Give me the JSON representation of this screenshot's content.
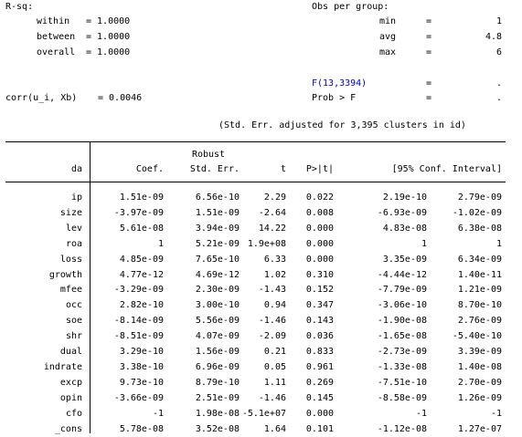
{
  "stats": {
    "rsq_label": "R-sq:",
    "within_label": "within",
    "within_eq": "= 1.0000",
    "between_label": "between",
    "between_eq": "= 1.0000",
    "overall_label": "overall",
    "overall_eq": "= 1.0000",
    "corr_label": "corr(u_i, Xb)",
    "corr_eq": "= 0.0046",
    "obs_label": "Obs per group:",
    "min_label": "min",
    "min_value": "1",
    "avg_label": "avg",
    "avg_value": "4.8",
    "max_label": "max",
    "max_value": "6",
    "f_label": "F(13,3394)",
    "f_value": ".",
    "prob_label": "Prob > F",
    "prob_value": ".",
    "eq_sign": "=",
    "note": "(Std. Err. adjusted for 3,395 clusters in id)"
  },
  "table": {
    "depvar": "da",
    "robust": "Robust",
    "headers": [
      "Coef.",
      "Std. Err.",
      "t",
      "P>|t|",
      "[95% Conf. Interval]"
    ],
    "rows": [
      {
        "var": "ip",
        "coef": "1.51e-09",
        "se": "6.56e-10",
        "t": "2.29",
        "p": "0.022",
        "lo": "2.19e-10",
        "hi": "2.79e-09"
      },
      {
        "var": "size",
        "coef": "-3.97e-09",
        "se": "1.51e-09",
        "t": "-2.64",
        "p": "0.008",
        "lo": "-6.93e-09",
        "hi": "-1.02e-09"
      },
      {
        "var": "lev",
        "coef": "5.61e-08",
        "se": "3.94e-09",
        "t": "14.22",
        "p": "0.000",
        "lo": "4.83e-08",
        "hi": "6.38e-08"
      },
      {
        "var": "roa",
        "coef": "1",
        "se": "5.21e-09",
        "t": "1.9e+08",
        "p": "0.000",
        "lo": "1",
        "hi": "1"
      },
      {
        "var": "loss",
        "coef": "4.85e-09",
        "se": "7.65e-10",
        "t": "6.33",
        "p": "0.000",
        "lo": "3.35e-09",
        "hi": "6.34e-09"
      },
      {
        "var": "growth",
        "coef": "4.77e-12",
        "se": "4.69e-12",
        "t": "1.02",
        "p": "0.310",
        "lo": "-4.44e-12",
        "hi": "1.40e-11"
      },
      {
        "var": "mfee",
        "coef": "-3.29e-09",
        "se": "2.30e-09",
        "t": "-1.43",
        "p": "0.152",
        "lo": "-7.79e-09",
        "hi": "1.21e-09"
      },
      {
        "var": "occ",
        "coef": "2.82e-10",
        "se": "3.00e-10",
        "t": "0.94",
        "p": "0.347",
        "lo": "-3.06e-10",
        "hi": "8.70e-10"
      },
      {
        "var": "soe",
        "coef": "-8.14e-09",
        "se": "5.56e-09",
        "t": "-1.46",
        "p": "0.143",
        "lo": "-1.90e-08",
        "hi": "2.76e-09"
      },
      {
        "var": "shr",
        "coef": "-8.51e-09",
        "se": "4.07e-09",
        "t": "-2.09",
        "p": "0.036",
        "lo": "-1.65e-08",
        "hi": "-5.40e-10"
      },
      {
        "var": "dual",
        "coef": "3.29e-10",
        "se": "1.56e-09",
        "t": "0.21",
        "p": "0.833",
        "lo": "-2.73e-09",
        "hi": "3.39e-09"
      },
      {
        "var": "indrate",
        "coef": "3.38e-10",
        "se": "6.96e-09",
        "t": "0.05",
        "p": "0.961",
        "lo": "-1.33e-08",
        "hi": "1.40e-08"
      },
      {
        "var": "excp",
        "coef": "9.73e-10",
        "se": "8.79e-10",
        "t": "1.11",
        "p": "0.269",
        "lo": "-7.51e-10",
        "hi": "2.70e-09"
      },
      {
        "var": "opin",
        "coef": "-3.66e-09",
        "se": "2.51e-09",
        "t": "-1.46",
        "p": "0.145",
        "lo": "-8.58e-09",
        "hi": "1.26e-09"
      },
      {
        "var": "cfo",
        "coef": "-1",
        "se": "1.98e-08",
        "t": "-5.1e+07",
        "p": "0.000",
        "lo": "-1",
        "hi": "-1"
      },
      {
        "var": "_cons",
        "coef": "5.78e-08",
        "se": "3.52e-08",
        "t": "1.64",
        "p": "0.101",
        "lo": "-1.12e-08",
        "hi": "1.27e-07"
      }
    ]
  }
}
